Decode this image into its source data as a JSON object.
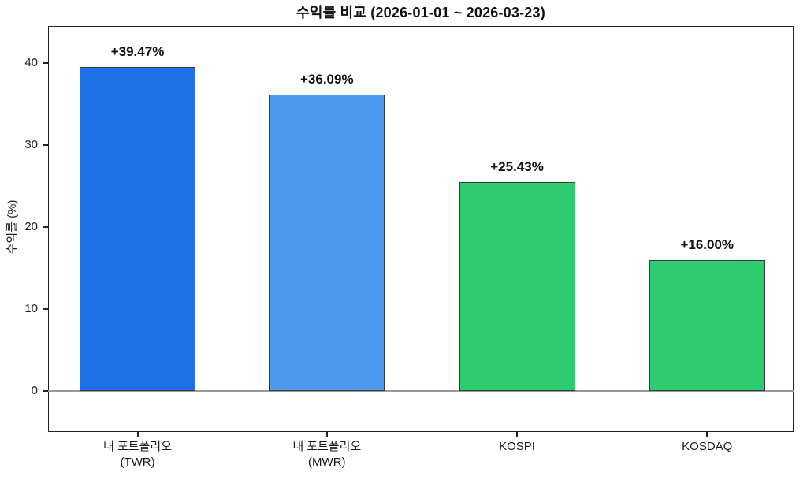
{
  "figure": {
    "background": "#ffffff"
  },
  "chart_data": {
    "type": "bar",
    "title": "수익률 비교 (2026-01-01 ~ 2026-03-23)",
    "xlabel": "",
    "ylabel": "수익률 (%)",
    "categories": [
      "내 포트폴리오\n(TWR)",
      "내 포트폴리오\n(MWR)",
      "KOSPI",
      "KOSDAQ"
    ],
    "values": [
      39.47,
      36.09,
      25.43,
      16.0
    ],
    "value_labels": [
      "+39.47%",
      "+36.09%",
      "+25.43%",
      "+16.00%"
    ],
    "bar_colors": [
      "#1E6FE8",
      "#4D9AF0",
      "#2ECC71",
      "#2ECC71"
    ],
    "bar_edge_color": "#3a3a3a",
    "ylim": [
      -5,
      44.5
    ],
    "yticks": [
      0,
      10,
      20,
      30,
      40
    ],
    "grid": false,
    "legend": "none",
    "zero_line_color": "#9a9a9a",
    "axis_color": "#222222"
  }
}
